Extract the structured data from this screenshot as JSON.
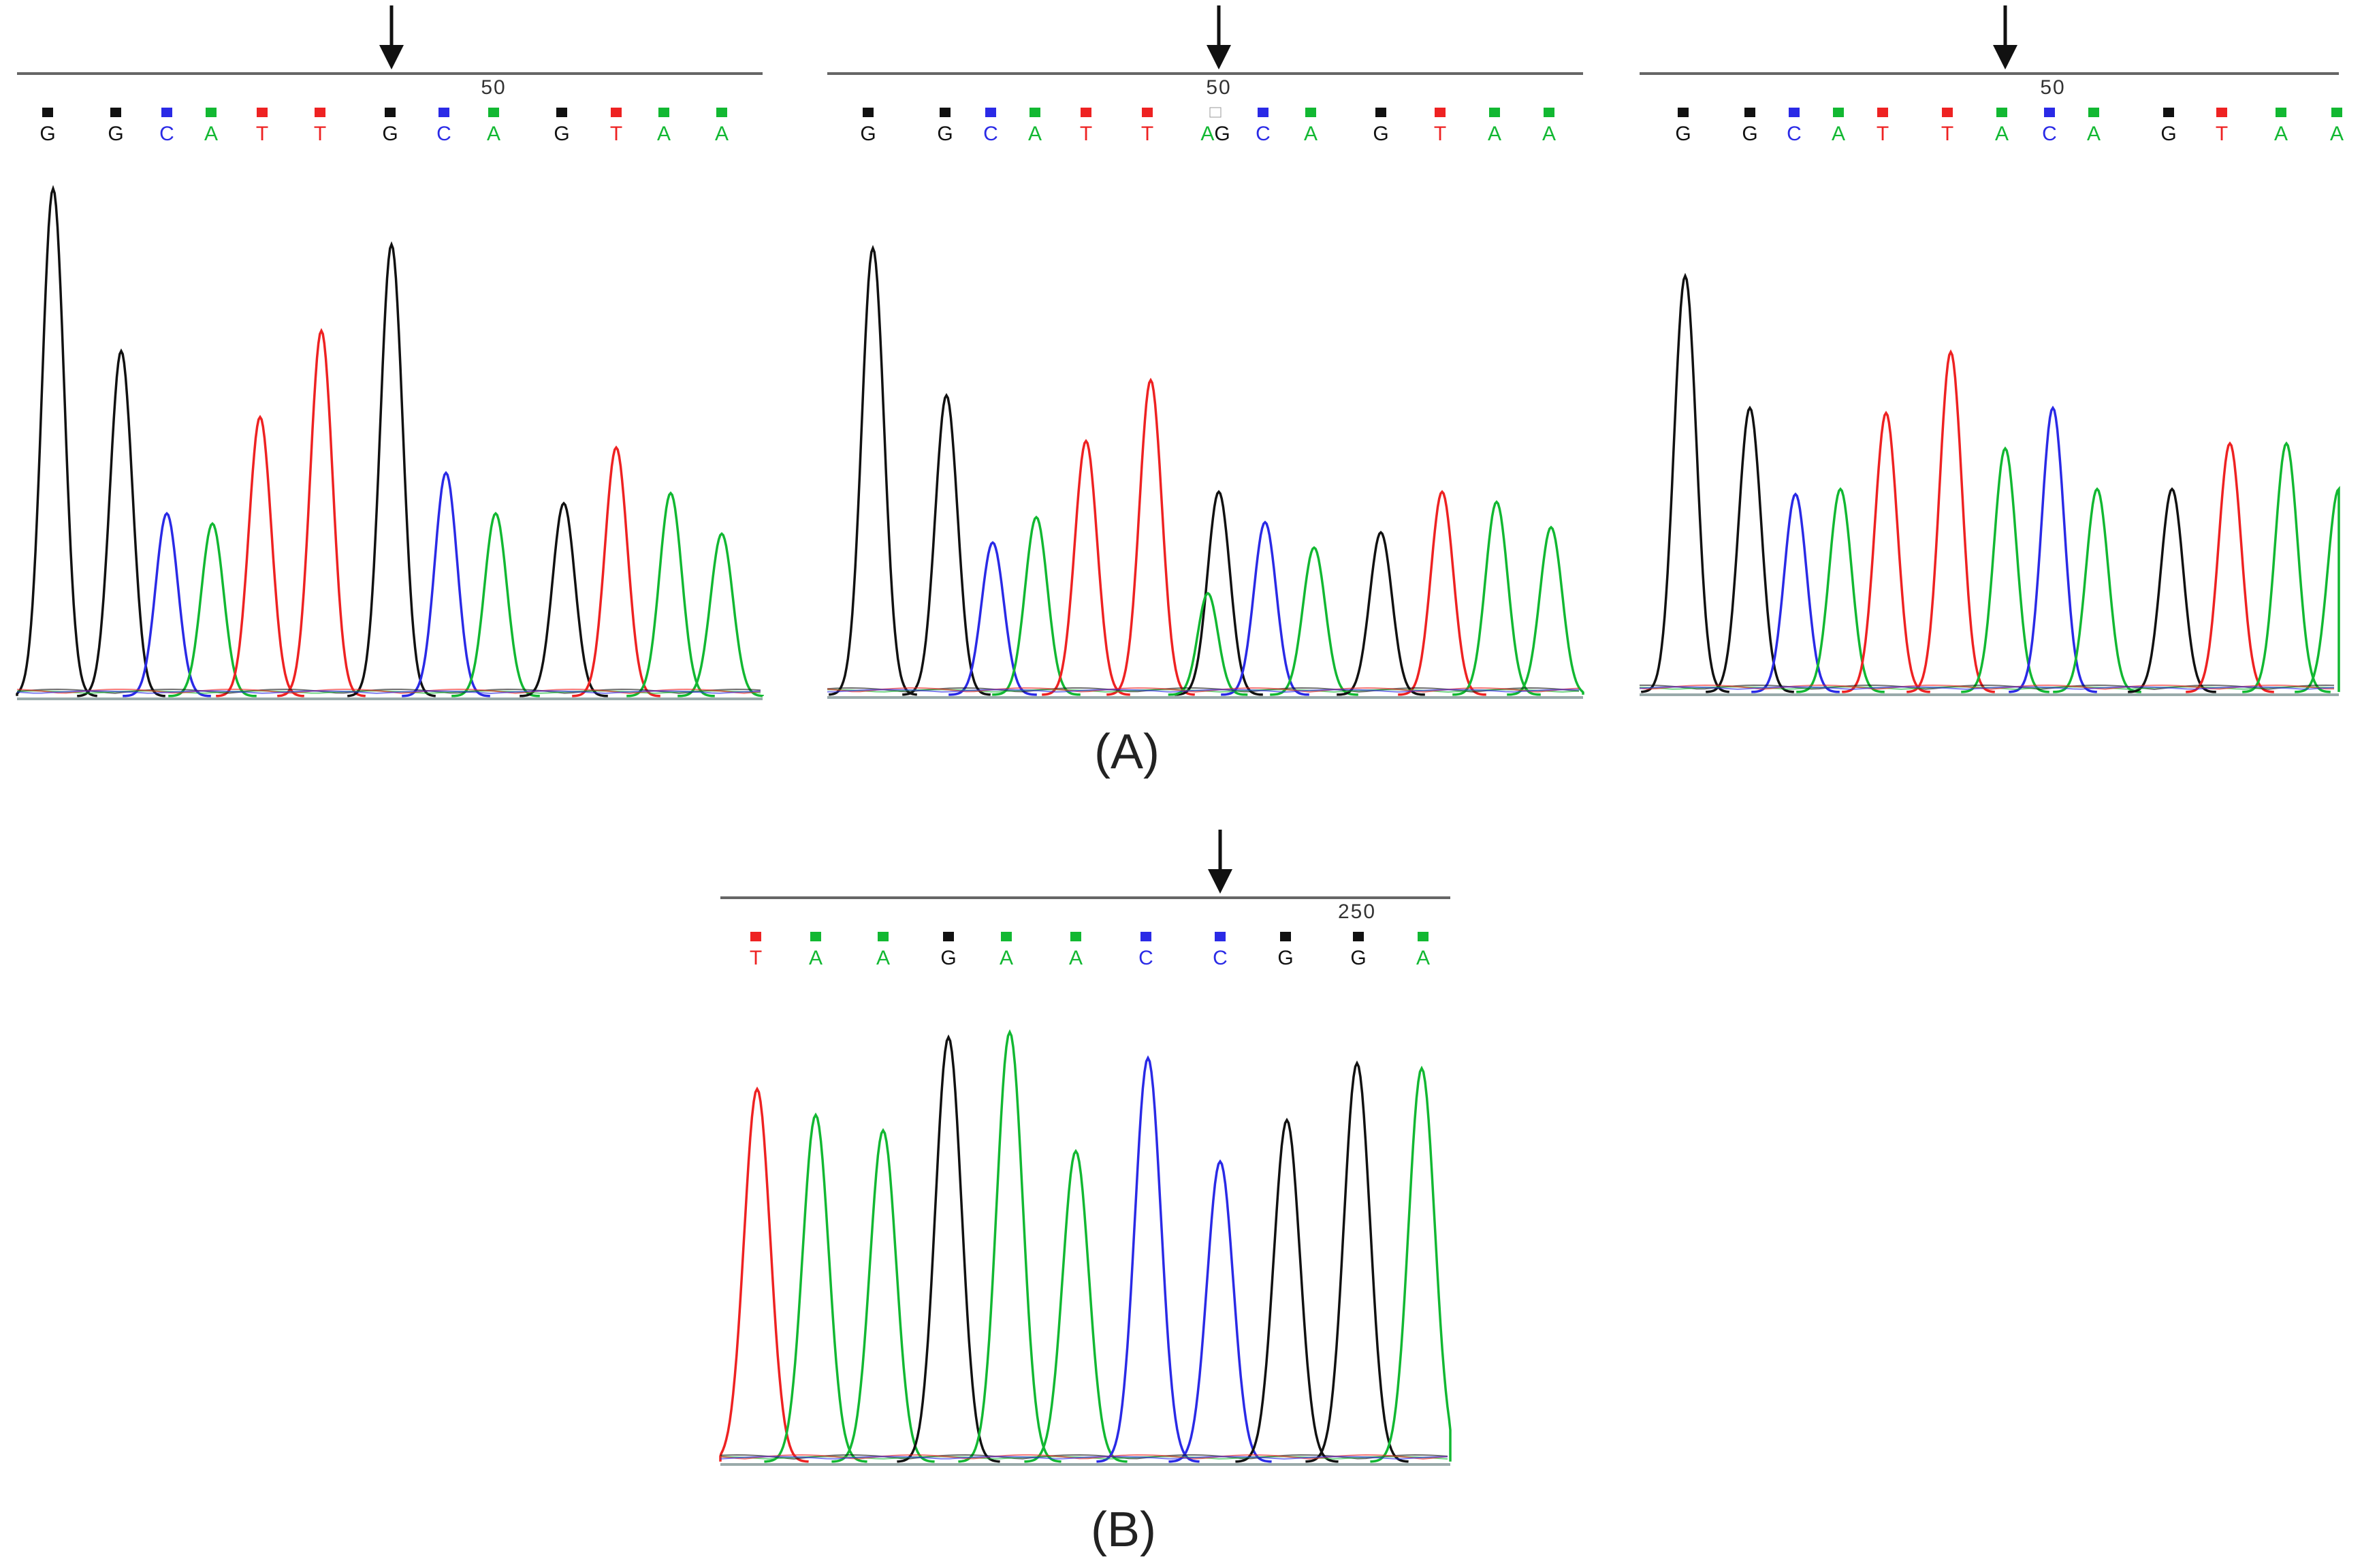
{
  "colors": {
    "G": "#111111",
    "A": "#12b832",
    "T": "#ee2222",
    "C": "#2a2ae6"
  },
  "captions": {
    "A": "(A)",
    "B": "(B)"
  },
  "chart_data": [
    {
      "type": "chromatogram",
      "panel": "A-1",
      "position_label": "50",
      "bases": [
        "G",
        "G",
        "C",
        "A",
        "T",
        "T",
        "G",
        "C",
        "A",
        "G",
        "T",
        "A",
        "A"
      ],
      "peaks": [
        {
          "base": "G",
          "height": 1.0
        },
        {
          "base": "G",
          "height": 0.68
        },
        {
          "base": "C",
          "height": 0.36
        },
        {
          "base": "A",
          "height": 0.34
        },
        {
          "base": "T",
          "height": 0.55
        },
        {
          "base": "T",
          "height": 0.72
        },
        {
          "base": "G",
          "height": 0.89
        },
        {
          "base": "C",
          "height": 0.44
        },
        {
          "base": "A",
          "height": 0.36
        },
        {
          "base": "G",
          "height": 0.38
        },
        {
          "base": "T",
          "height": 0.49
        },
        {
          "base": "A",
          "height": 0.4
        },
        {
          "base": "A",
          "height": 0.32
        }
      ],
      "mutation_base_index": 6
    },
    {
      "type": "chromatogram",
      "panel": "A-2",
      "position_label": "50",
      "bases": [
        "G",
        "G",
        "C",
        "A",
        "T",
        "T",
        "AG",
        "C",
        "A",
        "G",
        "T",
        "A",
        "A"
      ],
      "peaks": [
        {
          "base": "G",
          "height": 0.88
        },
        {
          "base": "G",
          "height": 0.59
        },
        {
          "base": "C",
          "height": 0.3
        },
        {
          "base": "A",
          "height": 0.35
        },
        {
          "base": "T",
          "height": 0.5
        },
        {
          "base": "T",
          "height": 0.62
        },
        {
          "base": "G",
          "height": 0.4,
          "secondary": {
            "base": "A",
            "height": 0.2
          }
        },
        {
          "base": "C",
          "height": 0.34
        },
        {
          "base": "A",
          "height": 0.29
        },
        {
          "base": "G",
          "height": 0.32
        },
        {
          "base": "T",
          "height": 0.4
        },
        {
          "base": "A",
          "height": 0.38
        },
        {
          "base": "A",
          "height": 0.33
        }
      ],
      "mutation_base_index": 6
    },
    {
      "type": "chromatogram",
      "panel": "A-3",
      "position_label": "50",
      "bases": [
        "G",
        "G",
        "C",
        "A",
        "T",
        "T",
        "A",
        "C",
        "A",
        "G",
        "T",
        "A",
        "A"
      ],
      "peaks": [
        {
          "base": "G",
          "height": 0.82
        },
        {
          "base": "G",
          "height": 0.56
        },
        {
          "base": "C",
          "height": 0.39
        },
        {
          "base": "A",
          "height": 0.4
        },
        {
          "base": "T",
          "height": 0.55
        },
        {
          "base": "T",
          "height": 0.67
        },
        {
          "base": "A",
          "height": 0.48
        },
        {
          "base": "C",
          "height": 0.56
        },
        {
          "base": "A",
          "height": 0.4
        },
        {
          "base": "G",
          "height": 0.4
        },
        {
          "base": "T",
          "height": 0.49
        },
        {
          "base": "A",
          "height": 0.49
        },
        {
          "base": "A",
          "height": 0.4
        }
      ],
      "mutation_base_index": 6
    },
    {
      "type": "chromatogram",
      "panel": "B",
      "position_label": "250",
      "bases": [
        "T",
        "A",
        "A",
        "G",
        "A",
        "A",
        "C",
        "C",
        "G",
        "G",
        "A"
      ],
      "peaks": [
        {
          "base": "T",
          "height": 0.72
        },
        {
          "base": "A",
          "height": 0.67
        },
        {
          "base": "A",
          "height": 0.64
        },
        {
          "base": "G",
          "height": 0.82
        },
        {
          "base": "A",
          "height": 0.83
        },
        {
          "base": "A",
          "height": 0.6
        },
        {
          "base": "C",
          "height": 0.78
        },
        {
          "base": "C",
          "height": 0.58
        },
        {
          "base": "G",
          "height": 0.66
        },
        {
          "base": "G",
          "height": 0.77
        },
        {
          "base": "A",
          "height": 0.76
        }
      ],
      "mutation_base_index": 7
    }
  ]
}
